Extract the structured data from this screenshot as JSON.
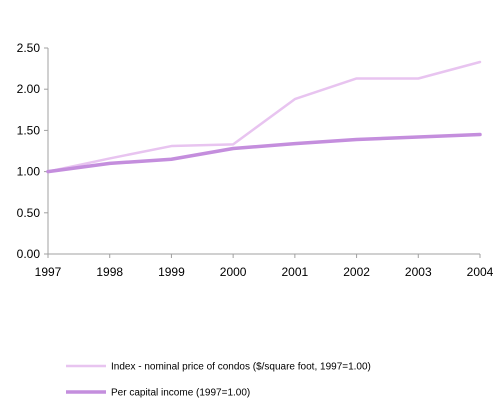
{
  "chart_data": {
    "type": "line",
    "title": "",
    "xlabel": "",
    "ylabel": "",
    "x": [
      "1997",
      "1998",
      "1999",
      "2000",
      "2001",
      "2002",
      "2003",
      "2004"
    ],
    "ylim": [
      0,
      2.5
    ],
    "yticks": [
      "0.00",
      "0.50",
      "1.00",
      "1.50",
      "2.00",
      "2.50"
    ],
    "ytick_values": [
      0,
      0.5,
      1.0,
      1.5,
      2.0,
      2.5
    ],
    "grid": false,
    "legend_position": "bottom",
    "series": [
      {
        "name": "Index - nominal price of condos ($/square foot, 1997=1.00)",
        "values": [
          1.0,
          1.16,
          1.31,
          1.33,
          1.88,
          2.13,
          2.13,
          2.33
        ],
        "color": "#E8C4F0"
      },
      {
        "name": "Per capital income (1997=1.00)",
        "values": [
          1.0,
          1.1,
          1.15,
          1.28,
          1.34,
          1.39,
          1.42,
          1.45
        ],
        "color": "#C48EDD"
      }
    ]
  }
}
